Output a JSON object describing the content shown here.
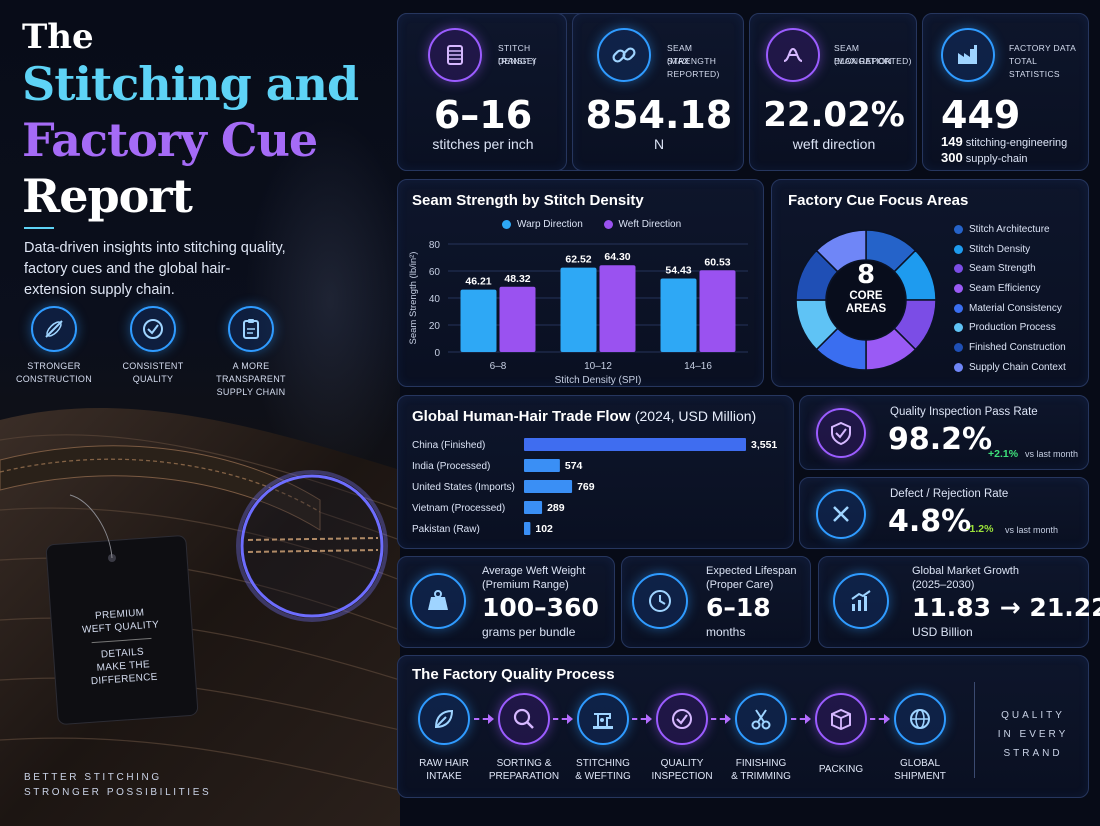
{
  "hero": {
    "title_line1": "The",
    "title_line2": "Stitching and",
    "title_line3": "Factory Cue",
    "title_line4": "Report",
    "subtitle": "Data-driven insights into stitching quality, factory cues and the global hair-extension supply chain.",
    "features": [
      {
        "icon": "needle-icon",
        "label_1": "STRONGER",
        "label_2": "CONSTRUCTION",
        "label_3": ""
      },
      {
        "icon": "check-shield-icon",
        "label_1": "CONSISTENT",
        "label_2": "QUALITY",
        "label_3": ""
      },
      {
        "icon": "clipboard-icon",
        "label_1": "A MORE",
        "label_2": "TRANSPARENT",
        "label_3": "SUPPLY CHAIN"
      }
    ],
    "tag_line1": "PREMIUM",
    "tag_line2": "WEFT QUALITY",
    "tag_line3": "DETAILS",
    "tag_line4": "MAKE THE",
    "tag_line5": "DIFFERENCE",
    "footer_line1": "BETTER STITCHING",
    "footer_line2": "STRONGER POSSIBILITIES"
  },
  "stats": [
    {
      "icon": "spool-icon",
      "label_1": "STITCH DENSITY",
      "label_2": "(RANGE)",
      "value": "6–16",
      "unit": "stitches per inch",
      "color": "#9b5cff"
    },
    {
      "icon": "chain-link-icon",
      "label_1": "SEAM STRENGTH",
      "label_2": "(MAX REPORTED)",
      "value": "854.18",
      "unit": "N",
      "color": "#2f9bff"
    },
    {
      "icon": "elongation-icon",
      "label_1": "SEAM ELONGATION",
      "label_2": "(MAX REPORTED)",
      "value": "22.02%",
      "unit": "weft direction",
      "color": "#9b5cff"
    },
    {
      "icon": "factory-icon",
      "label_1": "FACTORY DATA",
      "label_2": "TOTAL STATISTICS",
      "value": "449",
      "detail_1_num": "149",
      "detail_1_text": "stitching-engineering",
      "detail_2_num": "300",
      "detail_2_text": "supply-chain",
      "color": "#2f9bff"
    }
  ],
  "chart_data": [
    {
      "type": "bar",
      "title": "Seam Strength by Stitch Density",
      "categories": [
        "6–8",
        "10–12",
        "14–16"
      ],
      "series": [
        {
          "name": "Warp Direction",
          "values": [
            46.21,
            62.52,
            54.43
          ],
          "color": "#2ea8f5"
        },
        {
          "name": "Weft Direction",
          "values": [
            48.32,
            64.3,
            60.53
          ],
          "color": "#9a52f0"
        }
      ],
      "value_labels": [
        [
          "46.21",
          "62.52",
          "54.43"
        ],
        [
          "48.32",
          "64.30",
          "60.53"
        ]
      ],
      "xlabel": "Stitch Density (SPI)",
      "ylabel": "Seam Strength (lb/in²)",
      "ylim": [
        0,
        80
      ],
      "yticks": [
        "0",
        "20",
        "40",
        "60",
        "80"
      ],
      "legend": "top",
      "grid": true
    },
    {
      "type": "pie",
      "title": "Factory Cue Focus Areas",
      "center_value": "8",
      "center_label_1": "CORE",
      "center_label_2": "AREAS",
      "categories": [
        "Stitch Architecture",
        "Stitch Density",
        "Seam Strength",
        "Seam Efficiency",
        "Material Consistency",
        "Production Process",
        "Finished Construction",
        "Supply Chain Context"
      ],
      "values": [
        1,
        1,
        1,
        1,
        1,
        1,
        1,
        1
      ],
      "colors": [
        "#2563c9",
        "#1e9bef",
        "#7b4de6",
        "#9a5af5",
        "#3a6ef0",
        "#5fc3f5",
        "#1f4fb5",
        "#6f86f7"
      ],
      "legend": "right"
    },
    {
      "type": "bar",
      "orientation": "horizontal",
      "title": "Global Human-Hair Trade Flow",
      "title_suffix": "(2024, USD Million)",
      "categories": [
        "China (Finished)",
        "India (Processed)",
        "United States (Imports)",
        "Vietnam (Processed)",
        "Pakistan (Raw)"
      ],
      "values": [
        3551,
        574,
        769,
        289,
        102
      ],
      "value_labels": [
        "3,551",
        "574",
        "769",
        "289",
        "102"
      ],
      "xlim": [
        0,
        3551
      ]
    }
  ],
  "quality": {
    "pass": {
      "icon": "shield-check-icon",
      "label": "Quality Inspection Pass Rate",
      "value": "98.2%",
      "change": "+2.1%",
      "suffix": "vs last month",
      "change_color": "#3ee07a"
    },
    "defect": {
      "icon": "x-mark-icon",
      "label": "Defect / Rejection Rate",
      "value": "4.8%",
      "change": "-1.2%",
      "suffix": "vs last month",
      "change_color": "#9be23a"
    }
  },
  "metrics": [
    {
      "icon": "weight-icon",
      "label_1": "Average Weft Weight",
      "label_2": "(Premium Range)",
      "value": "100–360",
      "unit": "grams per bundle"
    },
    {
      "icon": "clock-icon",
      "label_1": "Expected Lifespan",
      "label_2": "(Proper Care)",
      "value": "6–18",
      "unit": "months"
    },
    {
      "icon": "growth-chart-icon",
      "label_1": "Global Market Growth",
      "label_2": "(2025–2030)",
      "value": "11.83 → 21.22",
      "unit": "USD Billion"
    }
  ],
  "process": {
    "title": "The Factory Quality Process",
    "steps": [
      {
        "icon": "leaf-icon",
        "line1": "RAW HAIR",
        "line2": "INTAKE",
        "ring": "blue"
      },
      {
        "icon": "magnifier-icon",
        "line1": "SORTING &",
        "line2": "PREPARATION",
        "ring": "purple"
      },
      {
        "icon": "sewing-machine-icon",
        "line1": "STITCHING",
        "line2": "& WEFTING",
        "ring": "blue"
      },
      {
        "icon": "check-badge-icon",
        "line1": "QUALITY",
        "line2": "INSPECTION",
        "ring": "purple"
      },
      {
        "icon": "scissors-icon",
        "line1": "FINISHING",
        "line2": "& TRIMMING",
        "ring": "blue"
      },
      {
        "icon": "box-icon",
        "line1": "PACKING",
        "line2": "",
        "ring": "purple"
      },
      {
        "icon": "globe-icon",
        "line1": "GLOBAL",
        "line2": "SHIPMENT",
        "ring": "blue"
      }
    ],
    "motto_1": "QUALITY",
    "motto_2": "IN EVERY",
    "motto_3": "STRAND"
  }
}
